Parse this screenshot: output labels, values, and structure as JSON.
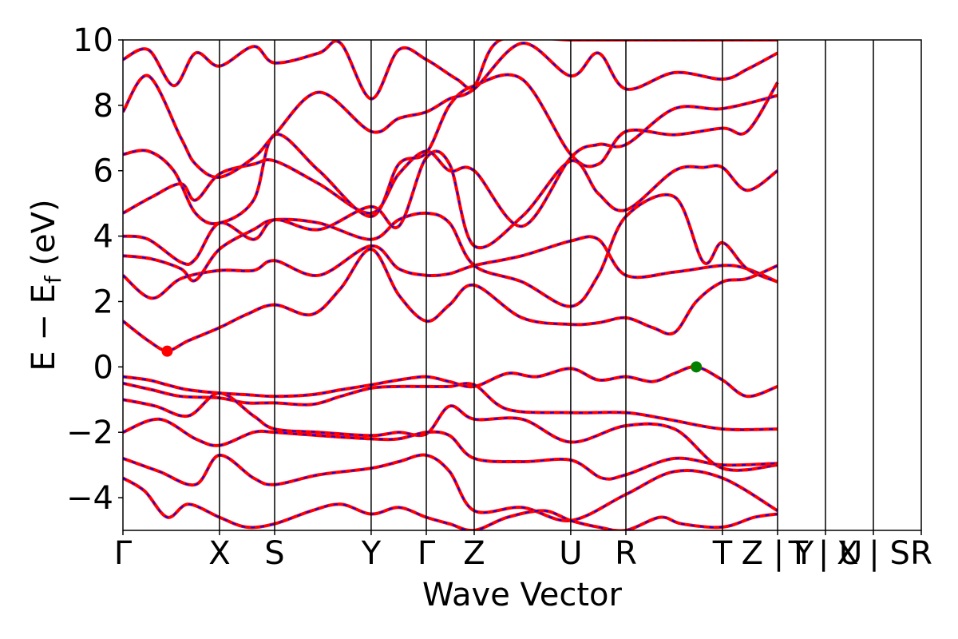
{
  "chart_data": {
    "type": "line",
    "title": "",
    "xlabel": "Wave Vector",
    "ylabel_parts": {
      "main": "E − E",
      "sub": "f",
      "tail": " (eV)"
    },
    "ylim": [
      -5,
      10
    ],
    "yticks": [
      {
        "value": 10,
        "label": "10"
      },
      {
        "value": 8,
        "label": "8"
      },
      {
        "value": 6,
        "label": "6"
      },
      {
        "value": 4,
        "label": "4"
      },
      {
        "value": 2,
        "label": "2"
      },
      {
        "value": 0,
        "label": "0"
      },
      {
        "value": -2,
        "label": "−2"
      },
      {
        "value": -4,
        "label": "−4"
      }
    ],
    "xlim": [
      0,
      11.0
    ],
    "kpath": [
      {
        "x": 0.0,
        "label": "Γ"
      },
      {
        "x": 1.33,
        "label": "X"
      },
      {
        "x": 2.09,
        "label": "S"
      },
      {
        "x": 3.42,
        "label": "Y"
      },
      {
        "x": 4.18,
        "label": "Γ"
      },
      {
        "x": 4.84,
        "label": "Z"
      },
      {
        "x": 6.17,
        "label": "U"
      },
      {
        "x": 6.93,
        "label": "R"
      },
      {
        "x": 8.26,
        "label": "T"
      },
      {
        "x": 9.02,
        "label": "Z | Y"
      },
      {
        "x": 9.68,
        "label": "T | U"
      },
      {
        "x": 10.34,
        "label": "X | S"
      },
      {
        "x": 11.0,
        "label": "R"
      }
    ],
    "grid": false,
    "legend": "none",
    "colors": {
      "band_outer": "#ff0000",
      "band_inner": "#0000ff",
      "cbm_marker": "#ff0000",
      "vbm_marker": "#008000",
      "axis": "#000000"
    },
    "markers": [
      {
        "name": "CBM",
        "x": 0.61,
        "y": 0.48,
        "color": "#ff0000"
      },
      {
        "name": "VBM",
        "x": 7.9,
        "y": 0.0,
        "color": "#008000"
      }
    ],
    "bands": [
      {
        "x": [
          0,
          0.35,
          0.61,
          0.9,
          1.33,
          1.7,
          2.09,
          2.6,
          3.0,
          3.42,
          3.8,
          4.18,
          4.5,
          4.84,
          5.3,
          5.7,
          6.17,
          6.55,
          6.93,
          7.3,
          7.6,
          7.9,
          8.26,
          8.6,
          9.02
        ],
        "y": [
          -0.3,
          -0.4,
          -0.55,
          -0.7,
          -0.8,
          -0.85,
          -0.9,
          -0.85,
          -0.7,
          -0.55,
          -0.4,
          -0.3,
          -0.45,
          -0.6,
          -0.2,
          -0.3,
          -0.05,
          -0.4,
          -0.3,
          -0.45,
          -0.2,
          0.0,
          -0.4,
          -0.9,
          -0.6
        ]
      },
      {
        "x": [
          0,
          0.4,
          0.8,
          1.33,
          1.7,
          2.09,
          2.6,
          3.0,
          3.42,
          3.8,
          4.18,
          4.5,
          4.84,
          5.3,
          6.17,
          6.93,
          7.5,
          8.26,
          9.02
        ],
        "y": [
          -0.5,
          -0.7,
          -0.9,
          -0.95,
          -1.1,
          -1.1,
          -1.15,
          -0.9,
          -0.65,
          -0.6,
          -0.6,
          -0.6,
          -0.55,
          -1.3,
          -1.4,
          -1.4,
          -1.6,
          -1.9,
          -1.9
        ]
      },
      {
        "x": [
          0,
          0.45,
          0.9,
          1.33,
          1.8,
          2.09,
          2.7,
          3.42,
          3.8,
          4.18,
          4.5,
          4.84,
          5.5,
          6.17,
          6.93,
          7.6,
          8.26,
          9.02
        ],
        "y": [
          -1.0,
          -1.2,
          -1.5,
          -0.8,
          -1.5,
          -1.9,
          -2.0,
          -2.1,
          -2.0,
          -2.05,
          -1.2,
          -1.6,
          -1.6,
          -2.3,
          -1.8,
          -1.9,
          -3.1,
          -3.0
        ]
      },
      {
        "x": [
          0,
          0.5,
          1.0,
          1.33,
          1.8,
          2.09,
          2.7,
          3.42,
          3.8,
          4.18,
          4.5,
          4.84,
          5.5,
          6.17,
          6.6,
          6.93,
          7.6,
          8.26,
          9.02
        ],
        "y": [
          -2.0,
          -1.6,
          -2.2,
          -2.4,
          -2.0,
          -2.0,
          -2.1,
          -2.2,
          -2.2,
          -2.0,
          -2.1,
          -2.8,
          -2.9,
          -2.85,
          -3.4,
          -3.3,
          -2.8,
          -3.0,
          -2.95
        ]
      },
      {
        "x": [
          0,
          0.5,
          1.0,
          1.33,
          1.8,
          2.09,
          2.7,
          3.42,
          3.8,
          4.18,
          4.5,
          4.84,
          5.5,
          6.17,
          6.93,
          7.6,
          8.26,
          9.02
        ],
        "y": [
          -2.8,
          -3.2,
          -3.6,
          -2.7,
          -3.4,
          -3.6,
          -3.3,
          -3.1,
          -2.9,
          -2.7,
          -3.2,
          -4.4,
          -4.3,
          -4.7,
          -3.9,
          -3.2,
          -3.4,
          -4.4
        ]
      },
      {
        "x": [
          0,
          0.35,
          0.61,
          0.9,
          1.33,
          1.7,
          2.09,
          2.6,
          3.0,
          3.42,
          3.8,
          4.18,
          4.5,
          4.84,
          5.5,
          6.17,
          6.55,
          6.93,
          7.3,
          7.6,
          7.9,
          8.26,
          8.6,
          9.02
        ],
        "y": [
          1.4,
          0.8,
          0.5,
          0.8,
          1.2,
          1.6,
          1.9,
          1.6,
          2.4,
          3.6,
          2.2,
          1.4,
          1.9,
          2.5,
          1.5,
          1.3,
          1.35,
          1.5,
          1.2,
          1.05,
          2.0,
          2.6,
          2.7,
          3.1
        ]
      },
      {
        "x": [
          0,
          0.4,
          0.8,
          1.33,
          1.8,
          2.09,
          2.7,
          3.42,
          3.8,
          4.18,
          4.5,
          4.84,
          5.5,
          6.17,
          6.55,
          6.93,
          7.6,
          8.26,
          8.6,
          9.02
        ],
        "y": [
          2.8,
          2.1,
          2.7,
          2.95,
          2.95,
          3.25,
          2.8,
          3.7,
          3.0,
          2.8,
          2.85,
          3.1,
          3.4,
          3.85,
          3.9,
          2.8,
          2.9,
          3.1,
          3.0,
          2.6
        ]
      },
      {
        "x": [
          0,
          0.4,
          0.8,
          1.0,
          1.33,
          1.8,
          2.09,
          2.7,
          3.42,
          3.8,
          4.18,
          4.5,
          4.84,
          5.5,
          6.17,
          6.55,
          6.93,
          7.6,
          8.0,
          8.26,
          8.6,
          9.02
        ],
        "y": [
          3.4,
          3.3,
          3.0,
          2.65,
          3.6,
          4.2,
          4.5,
          4.4,
          3.9,
          4.5,
          4.7,
          4.4,
          3.1,
          2.6,
          1.85,
          2.8,
          4.6,
          5.2,
          3.2,
          3.8,
          3.0,
          2.6
        ]
      },
      {
        "x": [
          0,
          0.35,
          0.8,
          1.0,
          1.33,
          1.8,
          2.09,
          2.7,
          3.42,
          3.8,
          4.18,
          4.5,
          4.84,
          5.5,
          6.17,
          6.55,
          6.93,
          7.6,
          8.0,
          8.26,
          8.6,
          9.02
        ],
        "y": [
          4.0,
          3.9,
          3.2,
          3.3,
          4.4,
          3.9,
          4.5,
          4.2,
          4.9,
          4.3,
          6.4,
          6.2,
          3.7,
          4.6,
          6.3,
          5.3,
          4.8,
          6.0,
          6.1,
          6.1,
          5.4,
          6.0
        ]
      },
      {
        "x": [
          0,
          0.4,
          0.8,
          1.0,
          1.33,
          1.8,
          2.09,
          2.7,
          3.42,
          3.8,
          4.18,
          4.5,
          4.84,
          5.5,
          6.17,
          6.55,
          6.93,
          7.6,
          8.26,
          9.02
        ],
        "y": [
          4.7,
          5.2,
          5.6,
          5.1,
          5.9,
          6.2,
          6.3,
          5.6,
          4.7,
          5.9,
          6.6,
          6.0,
          6.0,
          4.3,
          6.4,
          6.8,
          6.8,
          7.9,
          7.9,
          8.3
        ]
      },
      {
        "x": [
          0,
          0.35,
          0.7,
          1.0,
          1.33,
          1.8,
          2.09,
          2.7,
          3.42,
          3.8,
          4.18,
          4.5,
          4.84,
          5.5,
          6.17,
          6.55,
          6.93,
          7.6,
          8.26,
          8.6,
          9.02
        ],
        "y": [
          6.5,
          6.6,
          6.0,
          4.7,
          4.4,
          5.1,
          7.1,
          6.0,
          4.6,
          6.2,
          6.55,
          8.0,
          8.6,
          8.8,
          6.5,
          6.2,
          7.2,
          7.1,
          7.3,
          7.2,
          8.7
        ]
      },
      {
        "x": [
          0,
          0.35,
          0.8,
          1.0,
          1.33,
          1.8,
          2.09,
          2.7,
          3.42,
          3.8,
          4.18,
          4.5,
          4.84,
          5.5,
          6.17,
          6.55,
          6.93,
          7.6,
          8.26,
          8.6,
          9.02
        ],
        "y": [
          7.8,
          8.9,
          7.0,
          6.2,
          5.8,
          6.4,
          7.1,
          8.4,
          7.2,
          7.6,
          7.8,
          8.2,
          8.5,
          9.9,
          8.9,
          9.6,
          8.5,
          9.0,
          8.8,
          9.1,
          9.6
        ]
      },
      {
        "x": [
          0,
          0.35,
          0.7,
          1.0,
          1.33,
          1.8,
          2.09,
          2.7,
          3.0,
          3.42,
          3.8,
          4.18,
          4.6,
          4.84,
          5.2,
          6.17,
          6.93,
          7.5,
          8.26,
          9.02
        ],
        "y": [
          9.4,
          9.7,
          8.6,
          9.6,
          9.2,
          9.8,
          9.3,
          9.6,
          9.9,
          8.2,
          9.7,
          9.4,
          8.8,
          8.6,
          10.0,
          10.0,
          10.0,
          10.0,
          10.0,
          10.0
        ]
      },
      {
        "x": [
          0,
          0.3,
          0.61,
          0.9,
          1.33,
          1.7,
          2.09,
          2.6,
          3.0,
          3.42,
          3.8,
          4.18,
          4.5,
          4.84,
          5.3,
          5.8,
          6.17,
          6.55,
          6.93,
          7.4,
          7.7,
          8.26,
          8.7,
          9.02
        ],
        "y": [
          -3.4,
          -3.8,
          -4.6,
          -4.2,
          -4.6,
          -4.9,
          -4.8,
          -4.4,
          -4.2,
          -4.5,
          -4.3,
          -4.6,
          -4.8,
          -5.0,
          -4.6,
          -4.4,
          -4.7,
          -4.9,
          -5.0,
          -4.6,
          -4.8,
          -4.9,
          -4.6,
          -4.5
        ]
      }
    ]
  }
}
